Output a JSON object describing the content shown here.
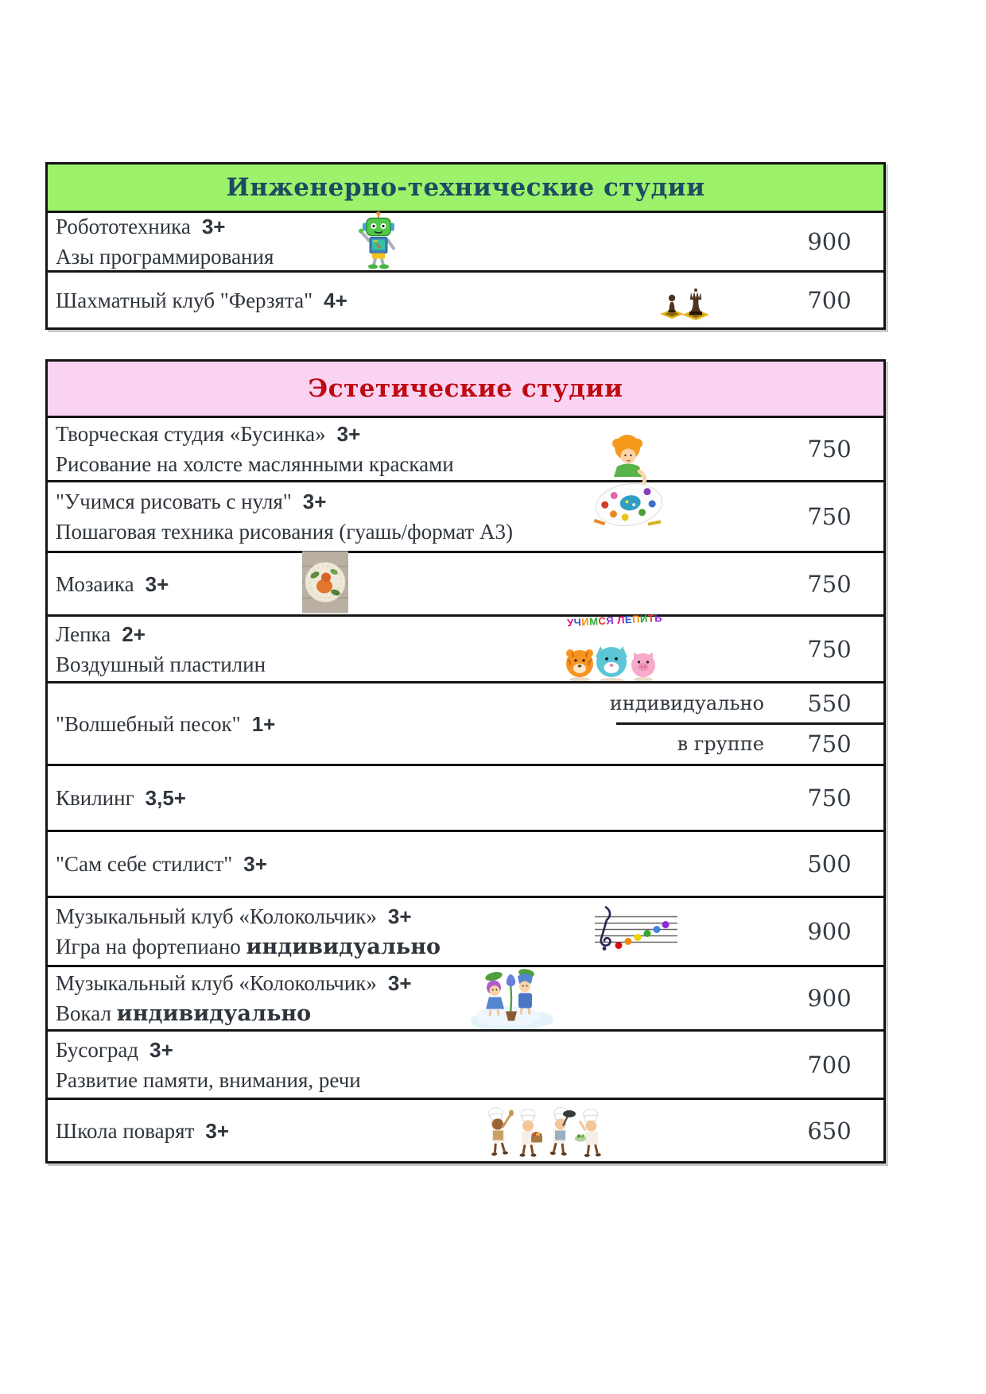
{
  "colors": {
    "green_header": "#9cf26b",
    "green_title_text": "#1d4b61",
    "pink_header": "#fad2f2",
    "pink_title_text": "#bf0a12",
    "body_text": "#2f353c",
    "border": "#141414",
    "rainbow": [
      "#e6007e",
      "#2e58c8",
      "#ff8a00",
      "#2ea836",
      "#e63229",
      "#8a2be2",
      "#00a5c8"
    ]
  },
  "tables": [
    {
      "title": "Инженерно-технические студии",
      "rows": [
        {
          "title": "Робототехника",
          "age": "3+",
          "subtitle": "Азы программирования",
          "price": "900",
          "icon": "robot-icon"
        },
        {
          "title": "Шахматный клуб \"Ферзята\"",
          "age": "4+",
          "price": "700",
          "icon": "chess-pieces-icon"
        }
      ]
    },
    {
      "title": "Эстетические студии",
      "rows": [
        {
          "title": "Творческая студия «Бусинка»",
          "age": "3+",
          "subtitle": "Рисование на холсте маслянными красками",
          "price": "750",
          "icon": "painting-kid-icon"
        },
        {
          "title": "\"Учимся рисовать с нуля\"",
          "age": "3+",
          "subtitle": "Пошаговая техника рисования (гуашь/формат А3)",
          "price": "750"
        },
        {
          "title": "Мозаика",
          "age": "3+",
          "price": "750",
          "icon": "mosaic-plate-icon"
        },
        {
          "title": "Лепка",
          "age": "2+",
          "subtitle": "Воздушный пластилин",
          "price": "750",
          "icon": "clay-animals-icon",
          "icon_caption": "УЧИМСЯ ЛЕПИТЬ"
        },
        {
          "title": "\"Волшебный песок\"",
          "age": "1+",
          "options": [
            {
              "label": "индивидуально",
              "price": "550"
            },
            {
              "label": "в группе",
              "price": "750"
            }
          ]
        },
        {
          "title": "Квилинг",
          "age": "3,5+",
          "price": "750"
        },
        {
          "title": "\"Сам себе стилист\"",
          "age": "3+",
          "price": "500"
        },
        {
          "title": "Музыкальный клуб «Колокольчик»",
          "age": "3+",
          "subtitle": "Игра на фортепиано",
          "subtitle_bold": "индивидуально",
          "price": "900",
          "icon": "music-staff-icon"
        },
        {
          "title": "Музыкальный клуб «Колокольчик»",
          "age": "3+",
          "subtitle": "Вокал",
          "subtitle_bold": "индивидуально",
          "price": "900",
          "icon": "singing-kids-icon"
        },
        {
          "title": "Бусоград",
          "age": "3+",
          "subtitle": "Развитие памяти, внимания, речи",
          "price": "700"
        },
        {
          "title": "Школа поварят",
          "age": "3+",
          "price": "650",
          "icon": "chef-kids-icon"
        }
      ]
    }
  ]
}
